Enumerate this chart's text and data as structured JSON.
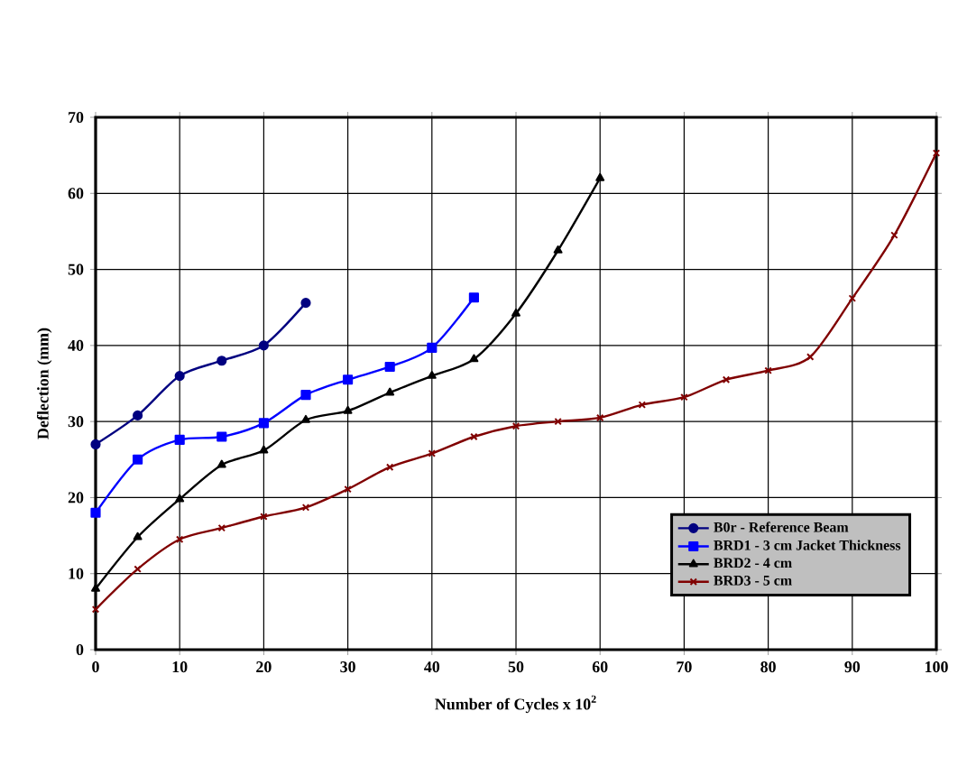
{
  "chart_data": {
    "type": "line",
    "xlabel": "Number of Cycles x 10$^{2}$",
    "ylabel": "Deflection (mm)",
    "xlim": [
      0,
      100
    ],
    "xticks": [
      0,
      10,
      20,
      30,
      40,
      50,
      60,
      70,
      80,
      90,
      100
    ],
    "ylim": [
      0,
      70
    ],
    "yticks": [
      0,
      10,
      20,
      30,
      40,
      50,
      60,
      70
    ],
    "grid": true,
    "legend": "bottom right",
    "series": [
      {
        "name": "B0r - Reference Beam",
        "color": "#000080",
        "marker": "circle",
        "x": [
          0,
          5,
          10,
          15,
          20,
          25
        ],
        "values": [
          27,
          30.8,
          36,
          38,
          40,
          45.6
        ]
      },
      {
        "name": "BRD1 - 3 cm Jacket Thickness",
        "color": "#0000ff",
        "marker": "square",
        "x": [
          0,
          5,
          10,
          15,
          20,
          25,
          30,
          35,
          40,
          45
        ],
        "values": [
          18,
          25,
          27.6,
          28,
          29.8,
          33.5,
          35.5,
          37.2,
          39.7,
          46.3
        ]
      },
      {
        "name": "BRD2 - 4 cm",
        "color": "#000000",
        "marker": "triangle",
        "x": [
          0,
          5,
          10,
          15,
          20,
          25,
          30,
          35,
          40,
          45,
          50,
          55,
          60
        ],
        "values": [
          8,
          14.8,
          19.8,
          24.3,
          26.2,
          30.2,
          31.4,
          33.8,
          36,
          38.2,
          44.2,
          52.5,
          62
        ]
      },
      {
        "name": "BRD3 - 5 cm",
        "color": "#800000",
        "marker": "cross",
        "x": [
          0,
          5,
          10,
          15,
          20,
          25,
          30,
          35,
          40,
          45,
          50,
          55,
          60,
          65,
          70,
          75,
          80,
          85,
          90,
          95,
          100
        ],
        "values": [
          5.3,
          10.6,
          14.5,
          16,
          17.5,
          18.7,
          21.1,
          24,
          25.8,
          28,
          29.4,
          30,
          30.5,
          32.2,
          33.2,
          35.5,
          36.7,
          38.5,
          46.2,
          54.5,
          65.3
        ]
      }
    ]
  }
}
